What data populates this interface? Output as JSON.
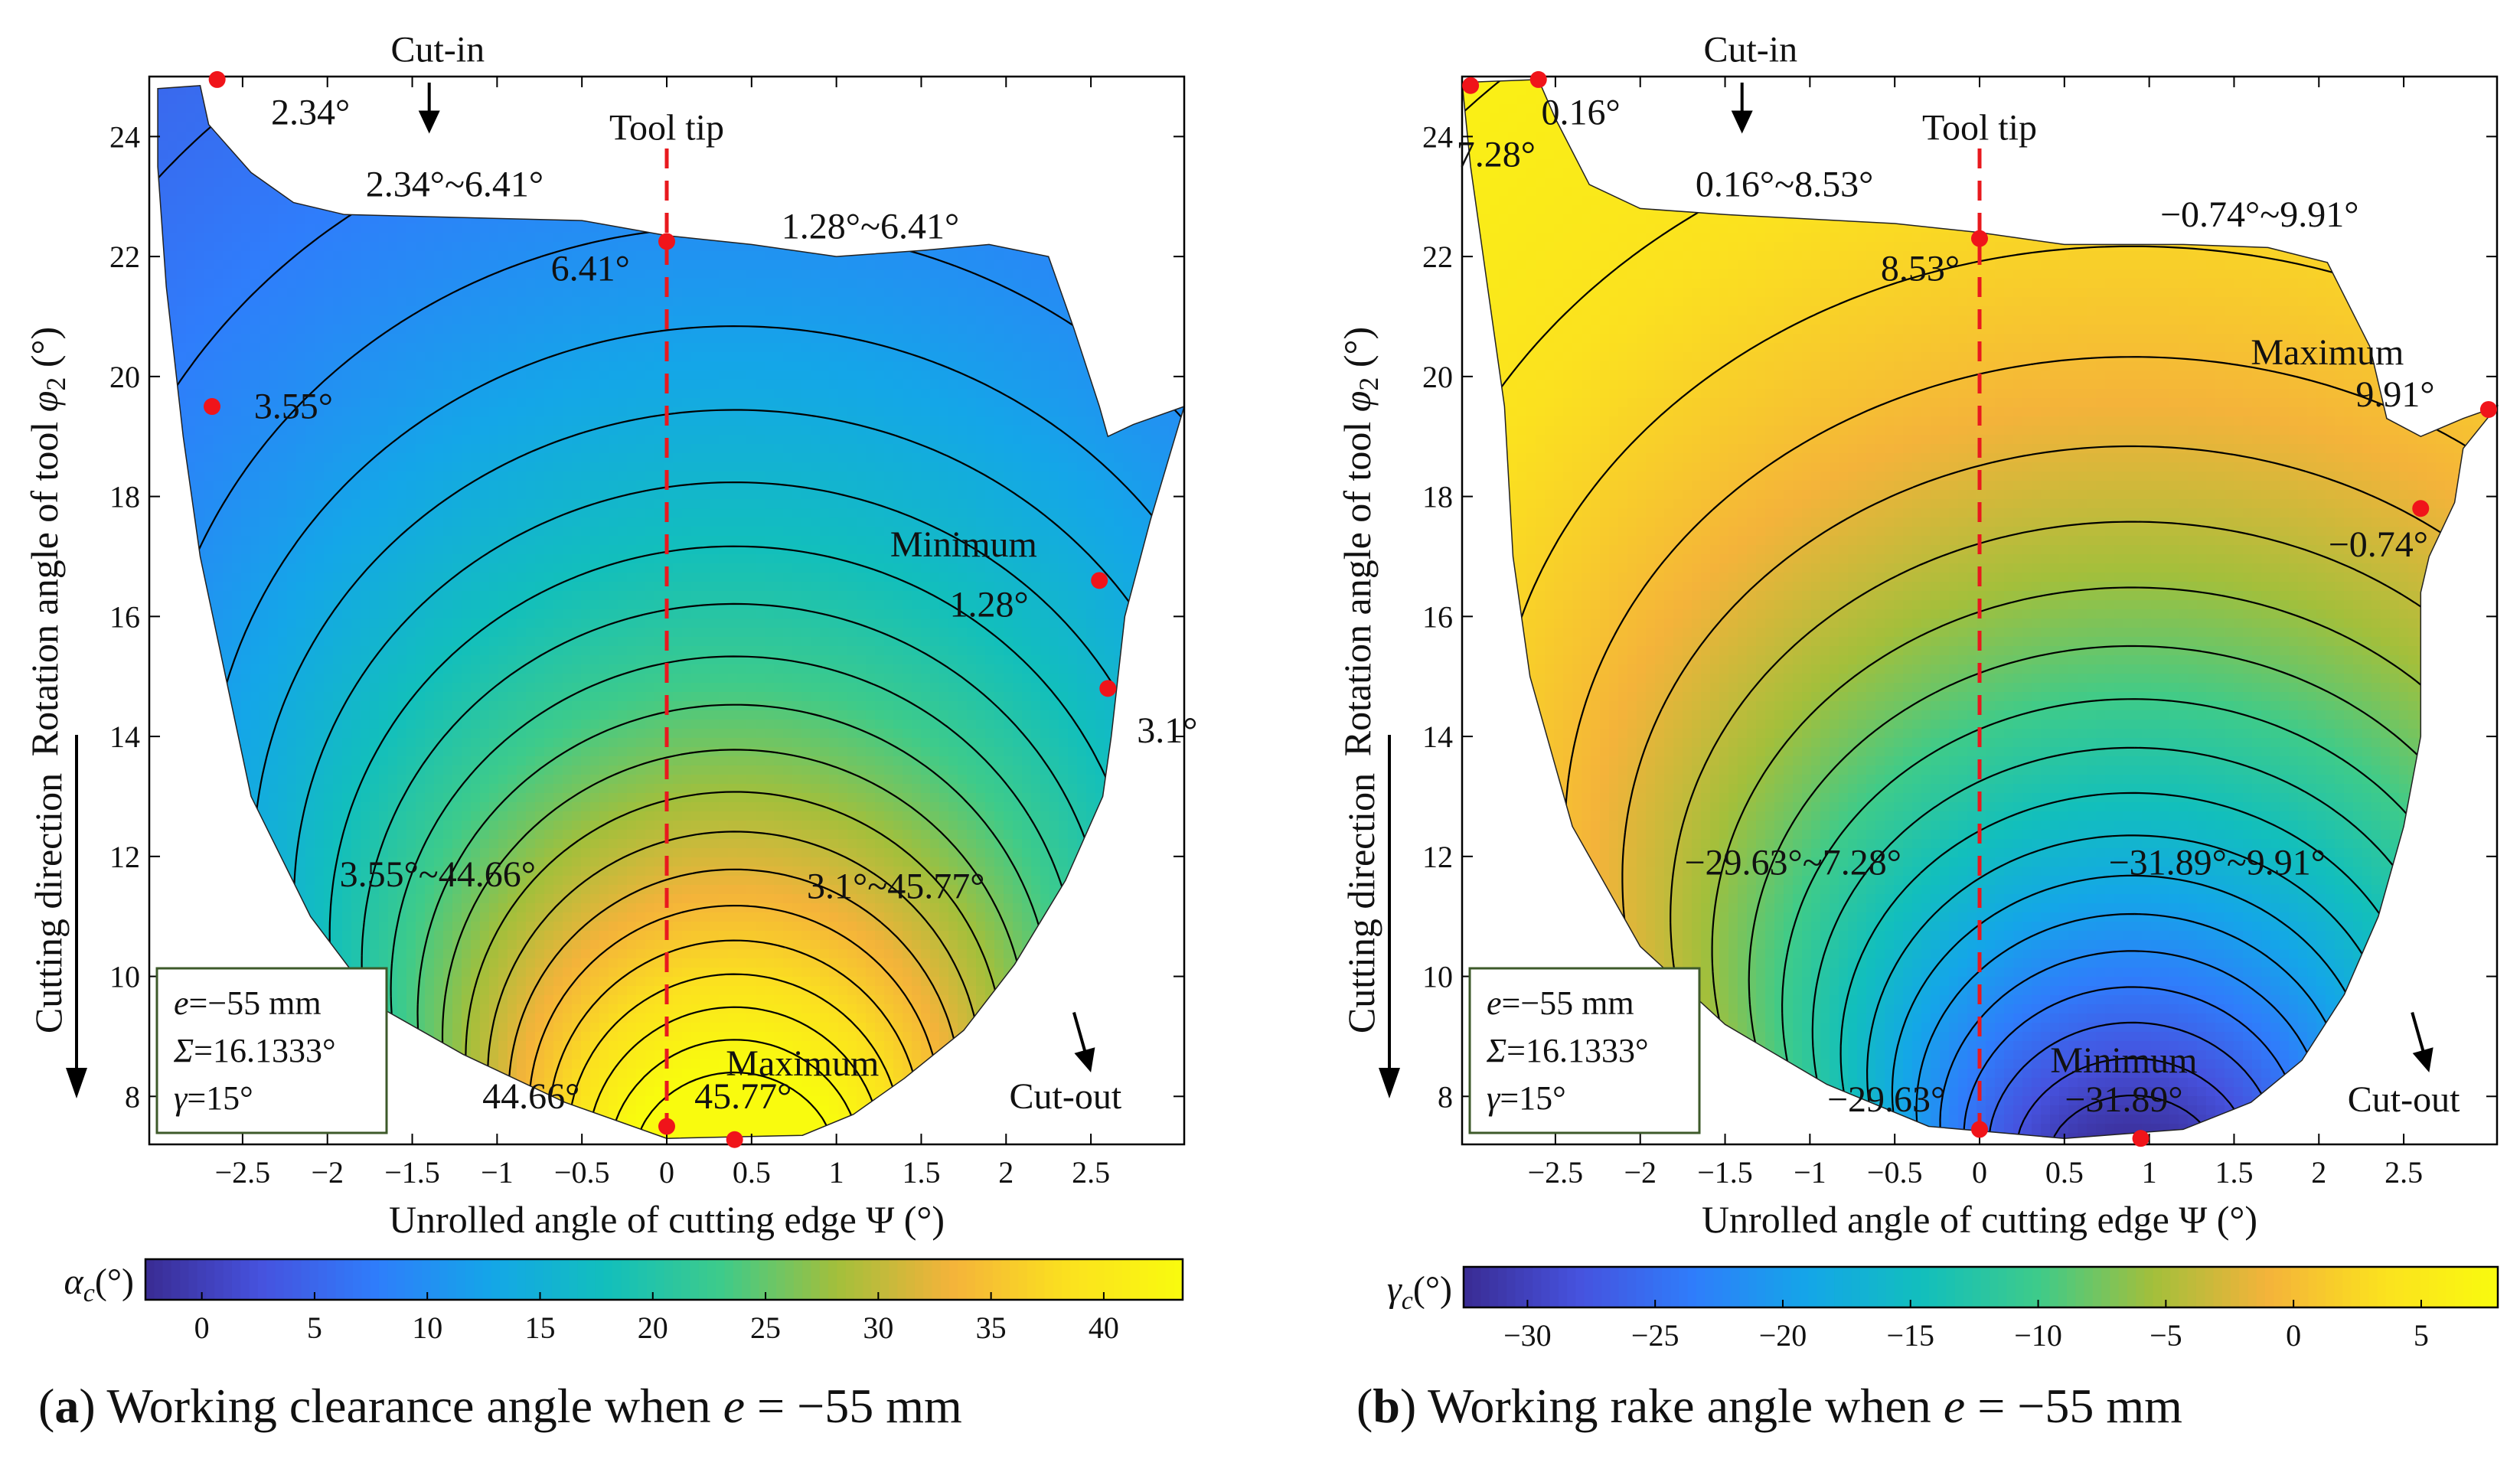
{
  "chart_data": [
    {
      "type": "contour",
      "id": "a",
      "caption": {
        "label": "a",
        "text_before": "Working clearance angle when ",
        "var": "e",
        "text_after": " = −55 mm"
      },
      "xlabel": "Unrolled angle of cutting edge Ψ (°)",
      "ylabel_pre": "Rotation angle of tool ",
      "ylabel_var": "φ",
      "ylabel_sub": "2",
      "ylabel_post": " (°)",
      "xlim": [
        -3.05,
        3.05
      ],
      "ylim": [
        7.2,
        25.0
      ],
      "xticks": [
        -2.5,
        -2,
        -1.5,
        -1,
        -0.5,
        0,
        0.5,
        1,
        1.5,
        2,
        2.5
      ],
      "xtick_labels": [
        "−2.5",
        "−2",
        "−1.5",
        "−1",
        "−0.5",
        "0",
        "0.5",
        "1",
        "1.5",
        "2",
        "2.5"
      ],
      "yticks": [
        8,
        10,
        12,
        14,
        16,
        18,
        20,
        22,
        24
      ],
      "ytick_labels": [
        "8",
        "10",
        "12",
        "14",
        "16",
        "18",
        "20",
        "22",
        "24"
      ],
      "colormap": [
        "#3a2c93",
        "#4652de",
        "#2f7dfb",
        "#14a6e8",
        "#12bfbc",
        "#3ecb8a",
        "#a3bf3b",
        "#f4b33a",
        "#fbe11f",
        "#f9fb0e"
      ],
      "colorbar": {
        "label": "α",
        "label_sub": "c",
        "label_unit": "(°)",
        "min": -2.5,
        "max": 43.5,
        "ticks": [
          0,
          5,
          10,
          15,
          20,
          25,
          30,
          35,
          40
        ],
        "tick_labels": [
          "0",
          "5",
          "10",
          "15",
          "20",
          "25",
          "30",
          "35",
          "40"
        ]
      },
      "field": {
        "type": "clearance",
        "peak": 45.77,
        "peak_x": 0.4,
        "base_y": 7.4,
        "decay": 2.62,
        "bowl_coef": 4.2
      },
      "contour_levels": [
        2,
        4,
        6,
        8,
        10,
        12,
        14,
        16,
        18,
        20,
        22,
        24,
        26,
        28,
        30,
        32,
        34,
        36,
        38,
        40,
        42,
        44
      ],
      "boundary": [
        [
          -3.0,
          24.8
        ],
        [
          -2.75,
          24.85
        ],
        [
          -2.7,
          24.2
        ],
        [
          -2.45,
          23.4
        ],
        [
          -2.2,
          22.9
        ],
        [
          -1.9,
          22.7
        ],
        [
          -0.5,
          22.6
        ],
        [
          0.0,
          22.35
        ],
        [
          0.5,
          22.2
        ],
        [
          1.0,
          22.0
        ],
        [
          1.5,
          22.1
        ],
        [
          1.9,
          22.2
        ],
        [
          2.25,
          22.0
        ],
        [
          2.4,
          20.8
        ],
        [
          2.55,
          19.5
        ],
        [
          2.6,
          19.0
        ],
        [
          2.75,
          19.2
        ],
        [
          3.05,
          19.5
        ],
        [
          2.85,
          17.6
        ],
        [
          2.7,
          16.0
        ],
        [
          2.62,
          14.0
        ],
        [
          2.57,
          13.0
        ],
        [
          2.35,
          11.6
        ],
        [
          2.05,
          10.2
        ],
        [
          1.75,
          9.1
        ],
        [
          1.4,
          8.3
        ],
        [
          1.1,
          7.7
        ],
        [
          0.8,
          7.35
        ],
        [
          0.0,
          7.3
        ],
        [
          -0.6,
          7.9
        ],
        [
          -1.2,
          8.7
        ],
        [
          -1.7,
          9.5
        ],
        [
          -2.1,
          11.0
        ],
        [
          -2.45,
          13.0
        ],
        [
          -2.6,
          15.0
        ],
        [
          -2.75,
          17.0
        ],
        [
          -2.85,
          19.0
        ],
        [
          -2.95,
          21.5
        ],
        [
          -3.0,
          23.5
        ]
      ],
      "tool_tip_line": {
        "x": 0,
        "y0": 7.45,
        "y1": 23.8
      },
      "points": [
        [
          -2.65,
          24.95
        ],
        [
          0.0,
          22.25
        ],
        [
          -2.68,
          19.5
        ],
        [
          2.55,
          16.6
        ],
        [
          2.6,
          14.8
        ],
        [
          0.0,
          7.5
        ],
        [
          0.4,
          7.28
        ]
      ],
      "labels": [
        {
          "text": "Cut-in",
          "x": -1.35,
          "y": 25.25
        },
        {
          "text": "Tool tip",
          "x": 0.0,
          "y": 23.95
        },
        {
          "text": "2.34°",
          "x": -2.1,
          "y": 24.2
        },
        {
          "text": "2.34°~6.41°",
          "x": -1.25,
          "y": 23.0
        },
        {
          "text": "1.28°~6.41°",
          "x": 1.2,
          "y": 22.3
        },
        {
          "text": "6.41°",
          "x": -0.45,
          "y": 21.6
        },
        {
          "text": "3.55°",
          "x": -2.2,
          "y": 19.3
        },
        {
          "text": "Minimum",
          "x": 1.75,
          "y": 17.0
        },
        {
          "text": "1.28°",
          "x": 1.9,
          "y": 16.0
        },
        {
          "text": "3.1°",
          "x": 2.95,
          "y": 13.9
        },
        {
          "text": "3.55°~44.66°",
          "x": -1.35,
          "y": 11.5
        },
        {
          "text": "3.1°~45.77°",
          "x": 1.35,
          "y": 11.3
        },
        {
          "text": "Maximum",
          "x": 0.8,
          "y": 8.35
        },
        {
          "text": "44.66°",
          "x": -0.8,
          "y": 7.8
        },
        {
          "text": "45.77°",
          "x": 0.45,
          "y": 7.8
        },
        {
          "text": "Cut-out",
          "x": 2.35,
          "y": 7.8
        }
      ],
      "cut_in_arrow": {
        "x1": -1.4,
        "y1": 24.9,
        "x2": -1.4,
        "y2": 24.05
      },
      "cut_out_arrow": {
        "x1": 2.4,
        "y1": 9.4,
        "x2": 2.5,
        "y2": 8.4
      },
      "side_label": "Cutting direction",
      "param_box": {
        "e_var": "e",
        "e_val": "=−55 mm",
        "sigma_var": "Σ",
        "sigma_val": "=16.1333°",
        "gamma_var": "γ",
        "gamma_val": "=15°"
      }
    },
    {
      "type": "contour",
      "id": "b",
      "caption": {
        "label": "b",
        "text_before": "Working rake angle when ",
        "var": "e",
        "text_after": " = −55 mm"
      },
      "xlabel": "Unrolled angle of cutting edge Ψ (°)",
      "ylabel_pre": "Rotation angle of tool ",
      "ylabel_var": "φ",
      "ylabel_sub": "2",
      "ylabel_post": " (°)",
      "xlim": [
        -3.05,
        3.05
      ],
      "ylim": [
        7.2,
        25.0
      ],
      "xticks": [
        -2.5,
        -2,
        -1.5,
        -1,
        -0.5,
        0,
        0.5,
        1,
        1.5,
        2,
        2.5
      ],
      "xtick_labels": [
        "−2.5",
        "−2",
        "−1.5",
        "−1",
        "−0.5",
        "0",
        "0.5",
        "1",
        "1.5",
        "2",
        "2.5"
      ],
      "yticks": [
        8,
        10,
        12,
        14,
        16,
        18,
        20,
        22,
        24
      ],
      "ytick_labels": [
        "8",
        "10",
        "12",
        "14",
        "16",
        "18",
        "20",
        "22",
        "24"
      ],
      "colormap": [
        "#3a2c93",
        "#4652de",
        "#2f7dfb",
        "#14a6e8",
        "#12bfbc",
        "#3ecb8a",
        "#a3bf3b",
        "#f4b33a",
        "#fbe11f",
        "#f9fb0e"
      ],
      "colorbar": {
        "label": "γ",
        "label_sub": "c",
        "label_unit": "(°)",
        "min": -32.5,
        "max": 8.0,
        "ticks": [
          -30,
          -25,
          -20,
          -15,
          -10,
          -5,
          0,
          5
        ],
        "tick_labels": [
          "−30",
          "−25",
          "−20",
          "−15",
          "−10",
          "−5",
          "0",
          "5"
        ]
      },
      "field": {
        "type": "rake",
        "low": -31.89,
        "low_x": 0.9,
        "base_y": 7.3,
        "decay": 3.7,
        "bowl_coef": 4.5
      },
      "contour_levels": [
        -30,
        -28,
        -26,
        -24,
        -22,
        -20,
        -18,
        -16,
        -14,
        -12,
        -10,
        -8,
        -6,
        -4,
        -2,
        0,
        2,
        4,
        6,
        8
      ],
      "boundary": [
        [
          -3.05,
          24.9
        ],
        [
          -2.6,
          24.95
        ],
        [
          -2.5,
          24.3
        ],
        [
          -2.3,
          23.2
        ],
        [
          -2.0,
          22.8
        ],
        [
          -1.5,
          22.7
        ],
        [
          -0.5,
          22.55
        ],
        [
          0.0,
          22.4
        ],
        [
          0.5,
          22.2
        ],
        [
          1.2,
          22.2
        ],
        [
          1.7,
          22.15
        ],
        [
          2.05,
          21.9
        ],
        [
          2.3,
          20.5
        ],
        [
          2.4,
          19.3
        ],
        [
          2.6,
          19.0
        ],
        [
          2.85,
          19.3
        ],
        [
          3.05,
          19.5
        ],
        [
          2.85,
          18.8
        ],
        [
          2.8,
          17.9
        ],
        [
          2.65,
          17.0
        ],
        [
          2.6,
          16.4
        ],
        [
          2.6,
          14.0
        ],
        [
          2.5,
          12.5
        ],
        [
          2.35,
          11.0
        ],
        [
          2.15,
          9.7
        ],
        [
          1.9,
          8.6
        ],
        [
          1.6,
          7.9
        ],
        [
          1.2,
          7.45
        ],
        [
          0.5,
          7.3
        ],
        [
          -0.3,
          7.5
        ],
        [
          -0.9,
          8.2
        ],
        [
          -1.5,
          9.2
        ],
        [
          -2.0,
          10.5
        ],
        [
          -2.4,
          12.5
        ],
        [
          -2.65,
          15.0
        ],
        [
          -2.75,
          17.0
        ],
        [
          -2.8,
          19.5
        ],
        [
          -2.9,
          21.5
        ],
        [
          -3.0,
          23.5
        ]
      ],
      "tool_tip_line": {
        "x": 0,
        "y0": 7.45,
        "y1": 23.8
      },
      "points": [
        [
          -3.0,
          24.85
        ],
        [
          -2.6,
          24.95
        ],
        [
          0.0,
          22.3
        ],
        [
          3.0,
          19.45
        ],
        [
          2.6,
          17.8
        ],
        [
          0.0,
          7.45
        ],
        [
          0.95,
          7.3
        ]
      ],
      "labels": [
        {
          "text": "Cut-in",
          "x": -1.35,
          "y": 25.25
        },
        {
          "text": "Tool tip",
          "x": 0.0,
          "y": 23.95
        },
        {
          "text": "0.16°",
          "x": -2.35,
          "y": 24.2
        },
        {
          "text": "7.28°",
          "x": -2.85,
          "y": 23.5
        },
        {
          "text": "0.16°~8.53°",
          "x": -1.15,
          "y": 23.0
        },
        {
          "text": "−0.74°~9.91°",
          "x": 1.65,
          "y": 22.5
        },
        {
          "text": "8.53°",
          "x": -0.35,
          "y": 21.6
        },
        {
          "text": "Maximum",
          "x": 2.05,
          "y": 20.2
        },
        {
          "text": "9.91°",
          "x": 2.45,
          "y": 19.5
        },
        {
          "text": "−0.74°",
          "x": 2.35,
          "y": 17.0
        },
        {
          "text": "−29.63°~7.28°",
          "x": -1.1,
          "y": 11.7
        },
        {
          "text": "−31.89°~9.91°",
          "x": 1.4,
          "y": 11.7
        },
        {
          "text": "Minimum",
          "x": 0.85,
          "y": 8.4
        },
        {
          "text": "−29.63°",
          "x": -0.55,
          "y": 7.75
        },
        {
          "text": "−31.89°",
          "x": 0.85,
          "y": 7.75
        },
        {
          "text": "Cut-out",
          "x": 2.5,
          "y": 7.75
        }
      ],
      "cut_in_arrow": {
        "x1": -1.4,
        "y1": 24.9,
        "x2": -1.4,
        "y2": 24.05
      },
      "cut_out_arrow": {
        "x1": 2.55,
        "y1": 9.4,
        "x2": 2.65,
        "y2": 8.4
      },
      "side_label": "Cutting direction",
      "param_box": {
        "e_var": "e",
        "e_val": "=−55 mm",
        "sigma_var": "Σ",
        "sigma_val": "=16.1333°",
        "gamma_var": "γ",
        "gamma_val": "=15°"
      }
    }
  ]
}
